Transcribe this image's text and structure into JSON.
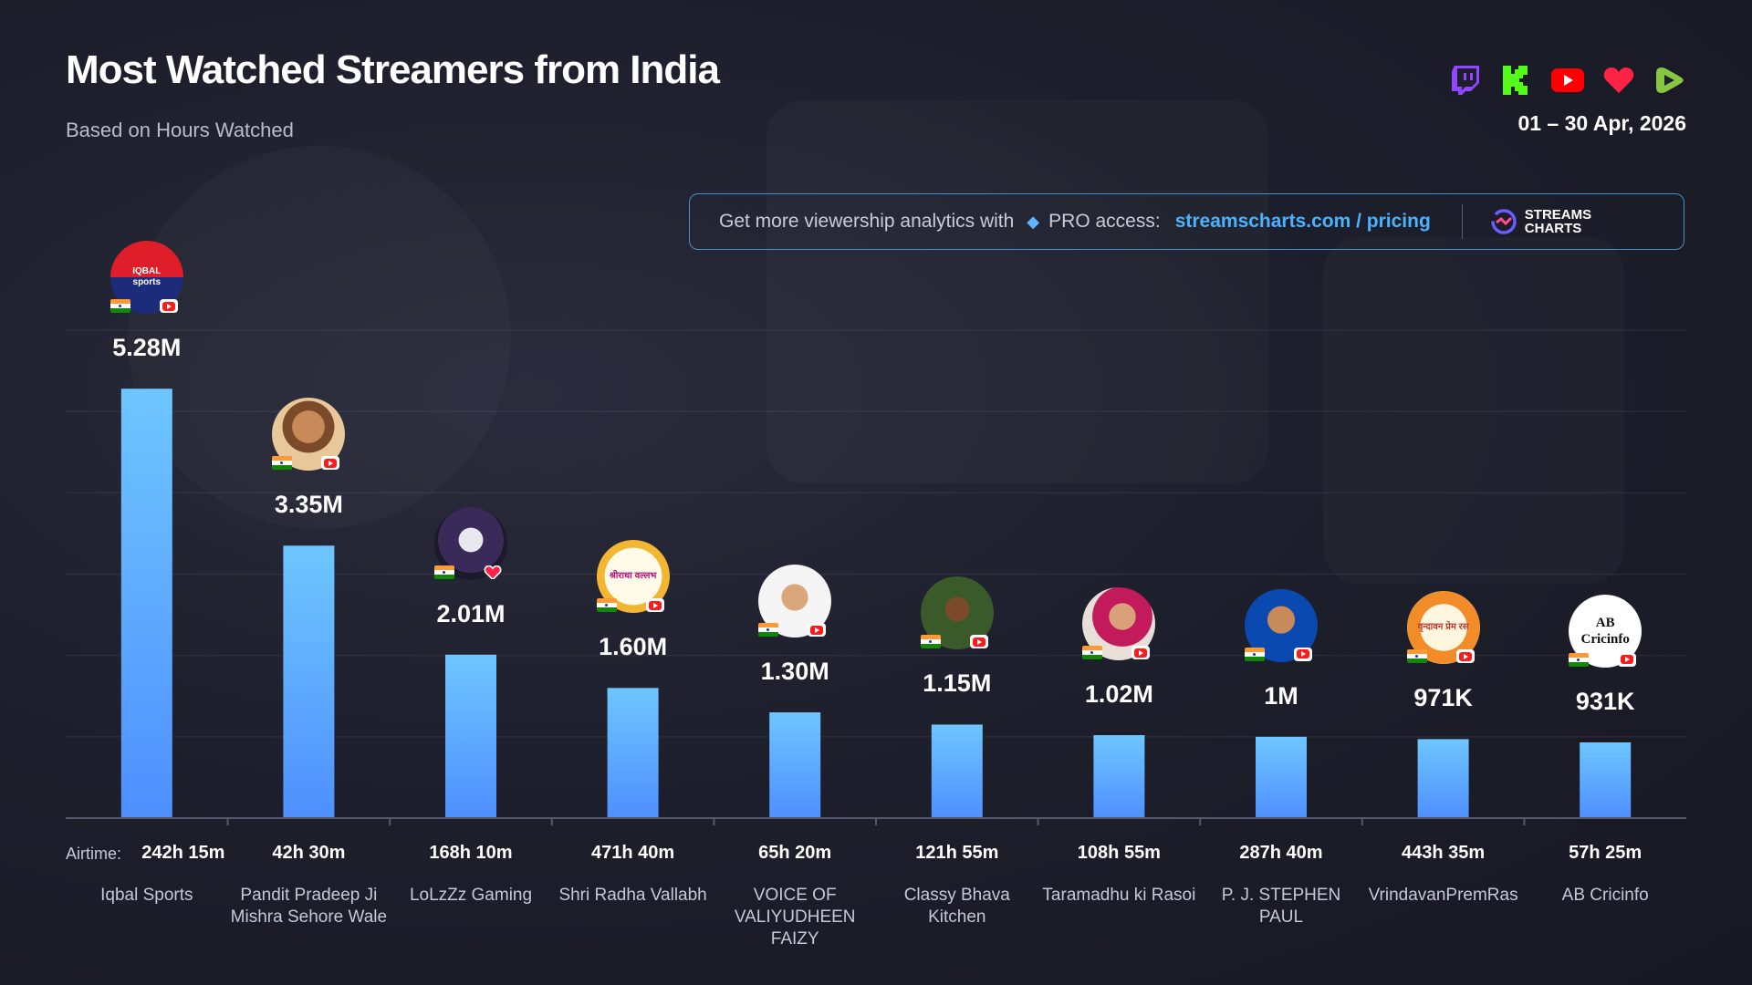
{
  "header": {
    "title": "Most Watched Streamers from India",
    "subtitle": "Based on Hours Watched",
    "date_range": "01 – 30 Apr, 2026"
  },
  "platform_icons": [
    "twitch-icon",
    "kick-icon",
    "youtube-icon",
    "heart-icon",
    "rumble-icon"
  ],
  "promo": {
    "text": "Get more viewership analytics with",
    "pro_label": "PRO access:",
    "link_text": "streamscharts.com / pricing",
    "brand_line1": "STREAMS",
    "brand_line2": "CHARTS"
  },
  "airtime_prefix": "Airtime:",
  "chart_data": {
    "type": "bar",
    "categories": [
      "Iqbal Sports",
      "Pandit Pradeep Ji Mishra Sehore Wale",
      "LoLzZz Gaming",
      "Shri Radha Vallabh",
      "VOICE OF VALIYUDHEEN FAIZY",
      "Classy Bhava Kitchen",
      "Taramadhu ki Rasoi",
      "P. J. STEPHEN PAUL",
      "VrindavanPremRas",
      "AB Cricinfo"
    ],
    "values": [
      5.28,
      3.35,
      2.01,
      1.6,
      1.3,
      1.15,
      1.02,
      1.0,
      0.971,
      0.931
    ],
    "unit": "M hours watched",
    "value_labels": [
      "5.28M",
      "3.35M",
      "2.01M",
      "1.60M",
      "1.30M",
      "1.15M",
      "1.02M",
      "1M",
      "971K",
      "931K"
    ],
    "airtime": [
      "242h 15m",
      "42h 30m",
      "168h 10m",
      "471h 40m",
      "65h 20m",
      "121h 55m",
      "108h 55m",
      "287h 40m",
      "443h 35m",
      "57h 25m"
    ],
    "platforms": [
      "youtube",
      "youtube",
      "heart",
      "youtube",
      "youtube",
      "youtube",
      "youtube",
      "youtube",
      "youtube",
      "youtube"
    ],
    "avatar_text": [
      "IQBAL sports",
      "",
      "",
      "श्रीराधा वल्लभ",
      "",
      "",
      "",
      "",
      "वृन्दावन प्रेम रस",
      "AB Cricinfo"
    ],
    "ylim": [
      0,
      6.0
    ],
    "grid": true,
    "bar_color": "#5fb8ff"
  }
}
